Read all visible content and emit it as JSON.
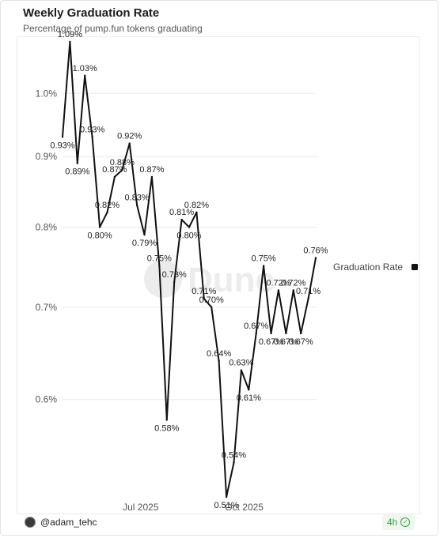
{
  "header": {
    "title": "Weekly Graduation Rate",
    "subtitle": "Percentage of pump.fun tokens graduating"
  },
  "watermark": "Dune",
  "footer": {
    "author": "@adam_tehc",
    "age": "4h",
    "badge_icon": "check-circle-icon"
  },
  "chart_data": {
    "type": "line",
    "series": [
      {
        "name": "Graduation Rate",
        "color": "#111111",
        "y": [
          0.93,
          1.09,
          0.89,
          1.03,
          0.93,
          0.8,
          0.82,
          0.87,
          0.88,
          0.92,
          0.83,
          0.79,
          0.87,
          0.75,
          0.58,
          0.73,
          0.81,
          0.8,
          0.82,
          0.71,
          0.7,
          0.64,
          0.51,
          0.54,
          0.63,
          0.61,
          0.67,
          0.75,
          0.67,
          0.72,
          0.67,
          0.72,
          0.67,
          0.71,
          0.76
        ],
        "labels": [
          "0.93%",
          "1.09%",
          "0.89%",
          "1.03%",
          "0.93%",
          "0.80%",
          "0.82%",
          "0.87%",
          "0.88%",
          "0.92%",
          "0.83%",
          "0.79%",
          "0.87%",
          "0.75%",
          "0.58%",
          "0.73%",
          "0.81%",
          "0.80%",
          "0.82%",
          "0.71%",
          "0.70%",
          "0.64%",
          "0.51%",
          "0.54%",
          "0.63%",
          "0.61%",
          "0.67%",
          "0.75%",
          "0.67%",
          "0.72%",
          "0.67%",
          "0.72%",
          "0.67%",
          "0.71%",
          "0.76%"
        ]
      }
    ],
    "x_ticks": [
      {
        "label": "Jul 2025",
        "week_index": 10.5
      },
      {
        "label": "Oct 2025",
        "week_index": 24.4
      }
    ],
    "y_ticks": [
      {
        "label": "1.0%",
        "value": 1.0
      },
      {
        "label": "0.9%",
        "value": 0.9
      },
      {
        "label": "0.8%",
        "value": 0.8
      },
      {
        "label": "0.7%",
        "value": 0.7
      },
      {
        "label": "0.6%",
        "value": 0.6
      }
    ],
    "ylim": [
      0.51,
      1.1
    ],
    "y_scale": "log",
    "grid": true,
    "legend_position": "right"
  }
}
